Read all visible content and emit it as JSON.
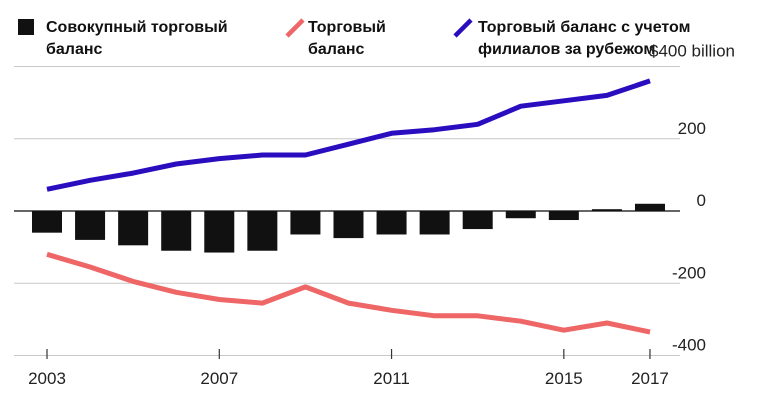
{
  "chart_data": {
    "type": "bar",
    "title": "",
    "xlabel": "",
    "ylabel": "",
    "ylim": [
      -400,
      400
    ],
    "x": [
      2003,
      2004,
      2005,
      2006,
      2007,
      2008,
      2009,
      2010,
      2011,
      2012,
      2013,
      2014,
      2015,
      2016,
      2017
    ],
    "x_tick_labels": [
      "2003",
      "2007",
      "2011",
      "2015",
      "2017"
    ],
    "x_tick_values": [
      2003,
      2007,
      2011,
      2015,
      2017
    ],
    "y_tick_labels": [
      "$400 billion",
      "200",
      "0",
      "-200",
      "-400"
    ],
    "y_tick_values": [
      400,
      200,
      0,
      -200,
      -400
    ],
    "grid": true,
    "legend_position": "top",
    "series": [
      {
        "name": "Совокупный торговый баланс",
        "label_lines": [
          "Совокупный торговый",
          "баланс"
        ],
        "type": "bar",
        "color": "#111111",
        "values": [
          -60,
          -80,
          -95,
          -110,
          -115,
          -110,
          -65,
          -75,
          -65,
          -65,
          -50,
          -20,
          -25,
          5,
          20
        ]
      },
      {
        "name": "Торговый баланс",
        "label_lines": [
          "Торговый",
          "баланс"
        ],
        "type": "line",
        "color": "#ee6666",
        "values": [
          -120,
          -155,
          -195,
          -225,
          -245,
          -255,
          -210,
          -255,
          -275,
          -290,
          -290,
          -305,
          -330,
          -310,
          -335
        ]
      },
      {
        "name": "Торговый баланс с учетом филиалов за рубежом",
        "label_lines": [
          "Торговый баланс с учетом",
          "филиалов за рубежом"
        ],
        "type": "line",
        "color": "#2a0dbf",
        "values": [
          60,
          85,
          105,
          130,
          145,
          155,
          155,
          185,
          215,
          225,
          240,
          290,
          305,
          320,
          360
        ]
      }
    ]
  }
}
